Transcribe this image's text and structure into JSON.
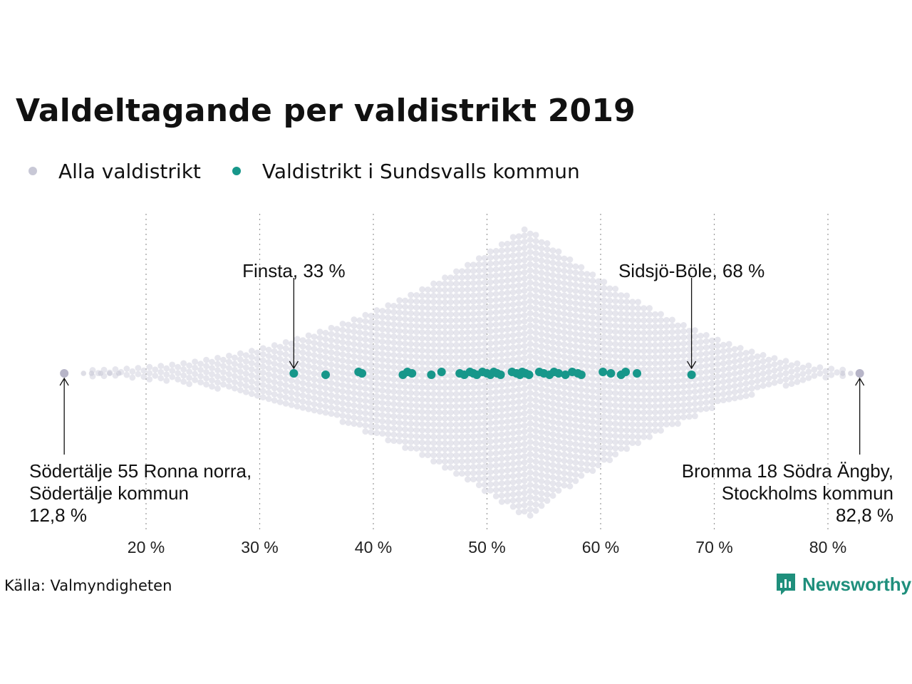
{
  "title": "Valdeltagande per valdistrikt 2019",
  "legend": {
    "all": {
      "label": "Alla valdistrikt",
      "color": "#c8c8d6"
    },
    "local": {
      "label": "Valdistrikt i Sundsvalls kommun",
      "color": "#17978a"
    }
  },
  "source": "Källa: Valmyndigheten",
  "brand": {
    "name": "Newsworthy",
    "icon": "newsworthy-logo-icon",
    "color": "#1f8f7c"
  },
  "chart_data": {
    "type": "scatter",
    "subtype": "beeswarm",
    "xlabel": "",
    "ylabel": "",
    "xlim": [
      12,
      84
    ],
    "x_ticks": [
      20,
      30,
      40,
      50,
      60,
      70,
      80
    ],
    "x_tick_labels": [
      "20 %",
      "30 %",
      "40 %",
      "50 %",
      "60 %",
      "70 %",
      "80 %"
    ],
    "grid": "vertical-dotted",
    "series": [
      {
        "name": "Alla valdistrikt",
        "color": "#c8c8d6",
        "distribution": {
          "min": 12.8,
          "max": 82.8,
          "peak": 53.5,
          "shape": "diamond"
        }
      },
      {
        "name": "Valdistrikt i Sundsvalls kommun",
        "color": "#17978a",
        "x": [
          33.0,
          35.8,
          38.7,
          39.0,
          42.6,
          43.0,
          43.4,
          45.1,
          46.0,
          47.6,
          48.0,
          48.5,
          48.8,
          49.1,
          49.6,
          50.0,
          50.3,
          50.6,
          50.9,
          51.2,
          52.2,
          52.6,
          52.9,
          53.1,
          53.4,
          53.7,
          54.6,
          55.0,
          55.5,
          55.9,
          56.3,
          56.9,
          57.5,
          58.0,
          58.3,
          60.2,
          60.9,
          61.8,
          62.2,
          63.2,
          68.0
        ]
      }
    ],
    "annotations": [
      {
        "lines": [
          "Finsta, 33 %"
        ],
        "x": 33,
        "series": "local",
        "position": "above"
      },
      {
        "lines": [
          "Sidsjö-Böle, 68 %"
        ],
        "x": 68,
        "series": "local",
        "position": "above"
      },
      {
        "lines": [
          "Södertälje 55 Ronna norra,",
          "Södertälje kommun",
          "12,8 %"
        ],
        "x": 12.8,
        "series": "all",
        "position": "below-left"
      },
      {
        "lines": [
          "Bromma 18 Södra Ängby,",
          "Stockholms kommun",
          "82,8 %"
        ],
        "x": 82.8,
        "series": "all",
        "position": "below-right"
      }
    ]
  }
}
